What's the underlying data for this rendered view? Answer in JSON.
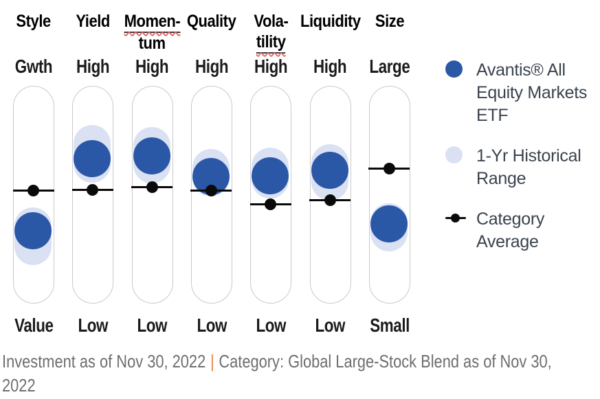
{
  "chart_data": {
    "type": "scatter",
    "variant": "fund-style-characteristics-pill-chart",
    "position_scale": "fraction of track height, 0 = top (Gwth/High/Large), 1 = bottom (Value/Low/Small)",
    "categories": [
      "Style",
      "Yield",
      "Momentum",
      "Quality",
      "Volatility",
      "Liquidity",
      "Size"
    ],
    "scale_top_labels": [
      "Gwth",
      "High",
      "High",
      "High",
      "High",
      "High",
      "Large"
    ],
    "scale_bottom_labels": [
      "Value",
      "Low",
      "Low",
      "Low",
      "Low",
      "Low",
      "Small"
    ],
    "series": [
      {
        "name": "Avantis® All Equity Markets ETF",
        "marker": "filled-circle",
        "color": "#2B57A7",
        "positions": [
          0.67,
          0.333,
          0.321,
          0.418,
          0.415,
          0.39,
          0.638
        ]
      },
      {
        "name": "1-Yr Historical Range",
        "marker": "capsule",
        "color": "#D9E1F2",
        "ranges": [
          [
            0.56,
            0.827
          ],
          [
            0.179,
            0.447
          ],
          [
            0.189,
            0.45
          ],
          [
            0.289,
            0.509
          ],
          [
            0.283,
            0.519
          ],
          [
            0.267,
            0.528
          ],
          [
            0.541,
            0.764
          ]
        ]
      },
      {
        "name": "Category Average",
        "marker": "dot-on-line",
        "color": "#0A0A0A",
        "positions": [
          0.481,
          0.478,
          0.465,
          0.484,
          0.547,
          0.528,
          0.38
        ]
      }
    ],
    "columns": [
      {
        "name": "Style",
        "header_lines": [
          "Style"
        ],
        "underline": [
          false
        ],
        "top_label": "Gwth",
        "bottom_label": "Value",
        "etf": 0.67,
        "range": [
          0.56,
          0.827
        ],
        "avg": 0.481
      },
      {
        "name": "Yield",
        "header_lines": [
          "Yield"
        ],
        "underline": [
          false
        ],
        "top_label": "High",
        "bottom_label": "Low",
        "etf": 0.333,
        "range": [
          0.179,
          0.447
        ],
        "avg": 0.478
      },
      {
        "name": "Momentum",
        "header_lines": [
          "Momen-",
          "tum"
        ],
        "underline": [
          true,
          false
        ],
        "top_label": "High",
        "bottom_label": "Low",
        "etf": 0.321,
        "range": [
          0.189,
          0.45
        ],
        "avg": 0.465
      },
      {
        "name": "Quality",
        "header_lines": [
          "Quality"
        ],
        "underline": [
          false
        ],
        "top_label": "High",
        "bottom_label": "Low",
        "etf": 0.418,
        "range": [
          0.289,
          0.509
        ],
        "avg": 0.484
      },
      {
        "name": "Volatility",
        "header_lines": [
          "Vola-",
          "tility"
        ],
        "underline": [
          false,
          true
        ],
        "top_label": "High",
        "bottom_label": "Low",
        "etf": 0.415,
        "range": [
          0.283,
          0.519
        ],
        "avg": 0.547
      },
      {
        "name": "Liquidity",
        "header_lines": [
          "Liquidity"
        ],
        "underline": [
          false
        ],
        "top_label": "High",
        "bottom_label": "Low",
        "etf": 0.39,
        "range": [
          0.267,
          0.528
        ],
        "avg": 0.528
      },
      {
        "name": "Size",
        "header_lines": [
          "Size"
        ],
        "underline": [
          false
        ],
        "top_label": "Large",
        "bottom_label": "Small",
        "etf": 0.638,
        "range": [
          0.541,
          0.764
        ],
        "avg": 0.38
      }
    ]
  },
  "legend": {
    "items": [
      {
        "label": "Avantis® All\nEquity Markets\nETF",
        "marker": "filled-circle",
        "color": "#2B57A7"
      },
      {
        "label": "1-Yr Historical\nRange",
        "marker": "filled-circle",
        "color": "#D9E1F2"
      },
      {
        "label": "Category\nAverage",
        "marker": "dot-on-line",
        "color": "#0A0A0A"
      }
    ]
  },
  "footer": {
    "line1_before": "Investment as of Nov 30, 2022",
    "separator": "|",
    "line1_after": "Category: Global Large-Stock Blend as of Nov 30,",
    "line2": "2022"
  },
  "colors": {
    "etf_marker": "#2B57A7",
    "historical_range": "#D9E1F2",
    "category_average": "#0A0A0A",
    "pill_border": "#C9C9C9",
    "header_text": "#000000",
    "scale_label_text": "#1B1B1B",
    "legend_text": "#3A434E",
    "footer_text": "#6E6E6E",
    "footer_separator": "#E8833A",
    "spellcheck_underline": "#E06666"
  }
}
